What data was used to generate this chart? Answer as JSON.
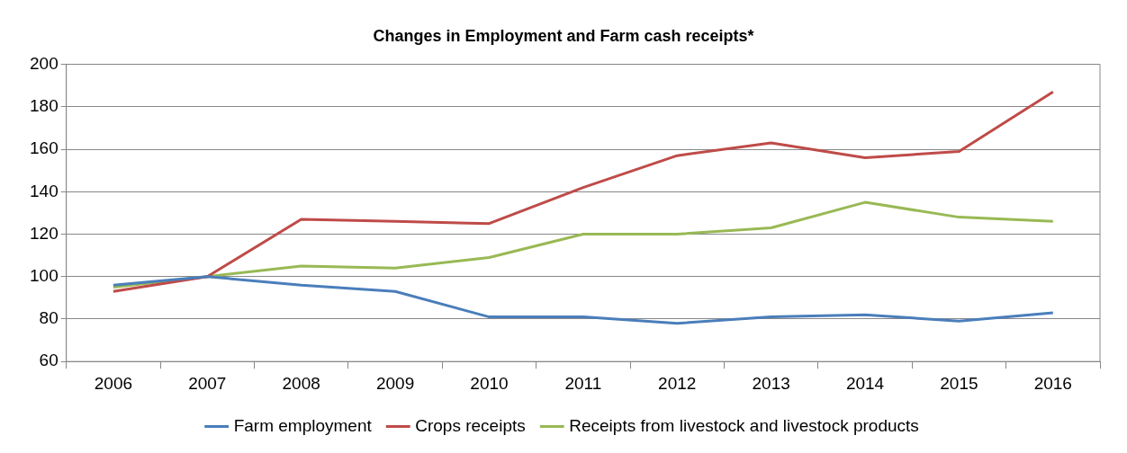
{
  "chart_data": {
    "type": "line",
    "title": "Changes in Employment and Farm cash receipts*",
    "categories": [
      "2006",
      "2007",
      "2008",
      "2009",
      "2010",
      "2011",
      "2012",
      "2013",
      "2014",
      "2015",
      "2016"
    ],
    "series": [
      {
        "name": "Farm employment",
        "color": "#4a7ebb",
        "values": [
          96,
          100,
          96,
          93,
          81,
          81,
          78,
          81,
          82,
          79,
          83
        ]
      },
      {
        "name": "Crops receipts",
        "color": "#be4b48",
        "values": [
          93,
          100,
          127,
          126,
          125,
          142,
          157,
          163,
          156,
          159,
          187
        ]
      },
      {
        "name": "Receipts from livestock and livestock products",
        "color": "#98b954",
        "values": [
          95,
          100,
          105,
          104,
          109,
          120,
          120,
          123,
          135,
          128,
          126
        ]
      }
    ],
    "ylim": [
      60,
      200
    ],
    "yticks": [
      60,
      80,
      100,
      120,
      140,
      160,
      180,
      200
    ],
    "grid": "y",
    "legend": "bottom",
    "marker": "none",
    "line_style": "solid"
  }
}
